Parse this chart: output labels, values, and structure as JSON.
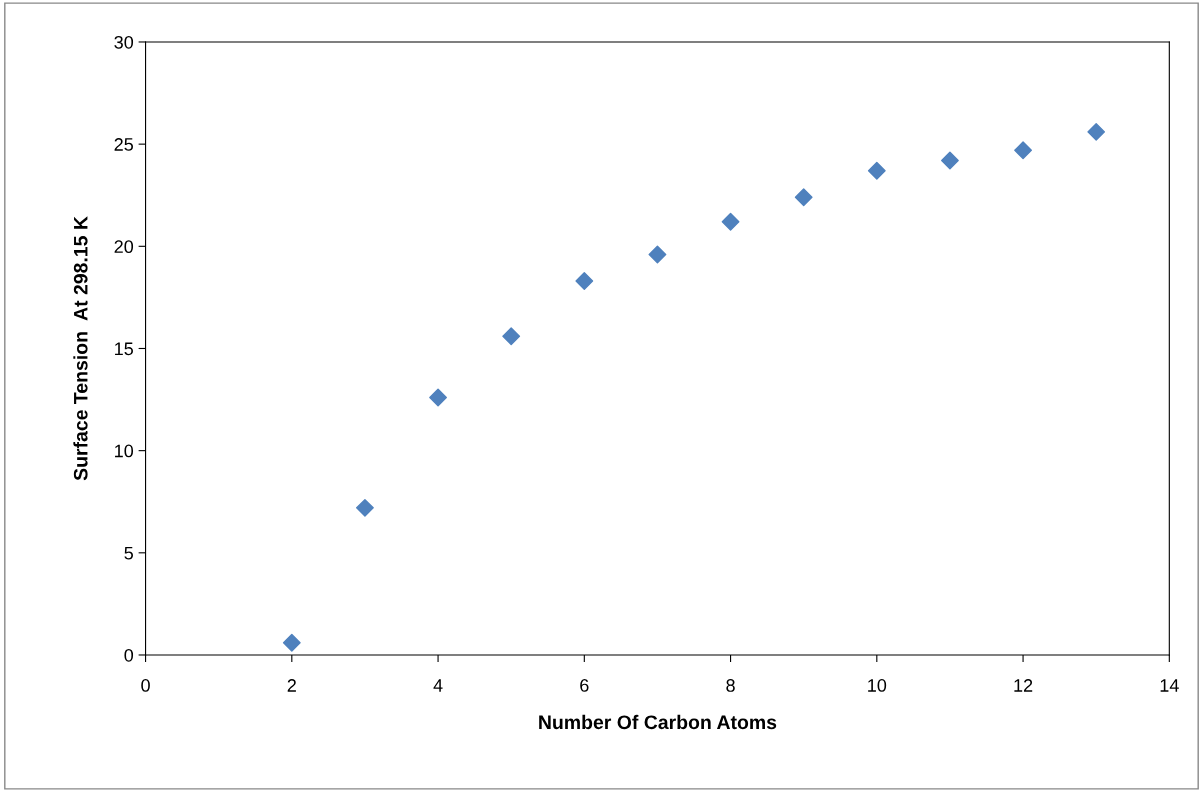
{
  "chart_data": {
    "type": "scatter",
    "xlabel": "Number Of Carbon Atoms",
    "ylabel": "Surface Tension  At 298.15 K",
    "x": [
      2,
      3,
      4,
      5,
      6,
      7,
      8,
      9,
      10,
      11,
      12,
      13
    ],
    "series": [
      {
        "color": "#4f81bd",
        "values": [
          0.6,
          7.2,
          12.6,
          15.6,
          18.3,
          19.6,
          21.2,
          22.4,
          23.7,
          24.2,
          24.7,
          25.6
        ]
      }
    ],
    "xlim": [
      0,
      14
    ],
    "xticks": [
      0,
      2,
      4,
      6,
      8,
      10,
      12,
      14
    ],
    "ylim": [
      0,
      30
    ],
    "yticks": [
      0,
      5,
      10,
      15,
      20,
      25,
      30
    ],
    "grid": false,
    "legend": false,
    "marker": "diamond"
  }
}
